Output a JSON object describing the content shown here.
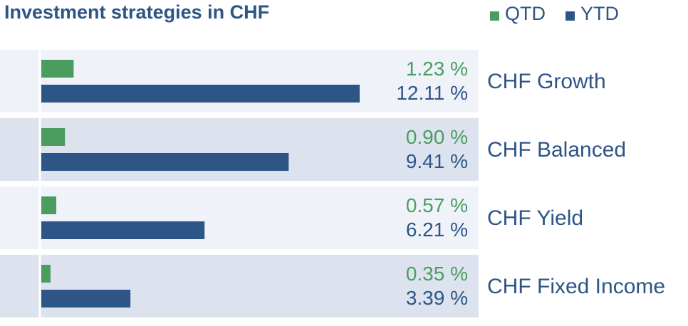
{
  "title": "Investment strategies in CHF",
  "legend": [
    {
      "label": "QTD",
      "color": "#4a9d5f"
    },
    {
      "label": "YTD",
      "color": "#2d5586"
    }
  ],
  "colors": {
    "qtd": "#4a9d5f",
    "ytd": "#2d5586",
    "label": "#2d5586",
    "row_light": "#eff3f9",
    "row_dark": "#dce3ef"
  },
  "chart_data": {
    "type": "bar",
    "orientation": "horizontal",
    "title": "Investment strategies in CHF",
    "categories": [
      "CHF Growth",
      "CHF Balanced",
      "CHF Yield",
      "CHF Fixed Income"
    ],
    "series": [
      {
        "name": "QTD",
        "values": [
          1.23,
          0.9,
          0.57,
          0.35
        ],
        "labels": [
          "1.23 %",
          "0.90 %",
          "0.57 %",
          "0.35 %"
        ]
      },
      {
        "name": "YTD",
        "values": [
          12.11,
          9.41,
          6.21,
          3.39
        ],
        "labels": [
          "12.11 %",
          "9.41 %",
          "6.21 %",
          "3.39 %"
        ]
      }
    ],
    "xlim": [
      0,
      12.11
    ],
    "legend_position": "top-right",
    "grid": false
  }
}
